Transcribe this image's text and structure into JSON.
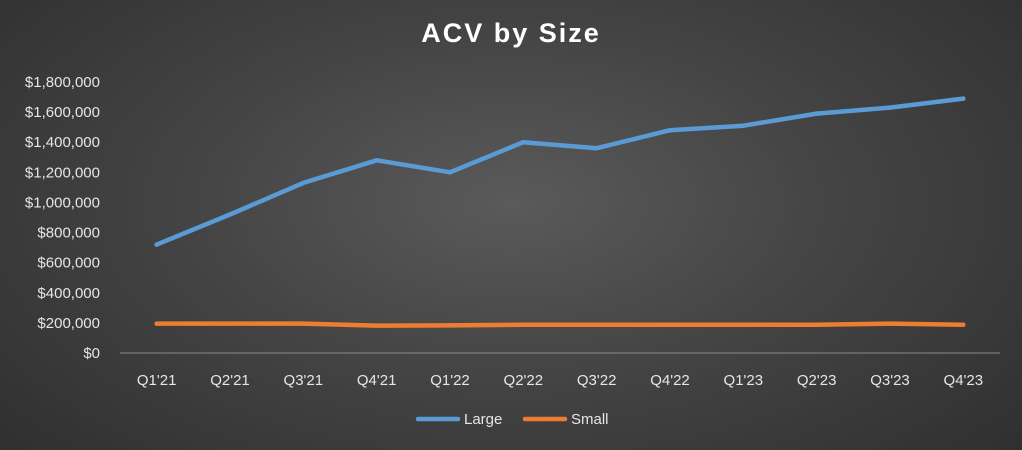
{
  "chart_data": {
    "type": "line",
    "title": "ACV by Size",
    "categories": [
      "Q1'21",
      "Q2'21",
      "Q3'21",
      "Q4'21",
      "Q1'22",
      "Q2'22",
      "Q3'22",
      "Q4'22",
      "Q1'23",
      "Q2'23",
      "Q3'23",
      "Q4'23"
    ],
    "y_tick_labels": [
      "$0",
      "$200,000",
      "$400,000",
      "$600,000",
      "$800,000",
      "$1,000,000",
      "$1,200,000",
      "$1,400,000",
      "$1,600,000",
      "$1,800,000"
    ],
    "ylim": [
      0,
      1800000
    ],
    "y_tick_step": 200000,
    "grid": false,
    "legend_position": "bottom",
    "series": [
      {
        "name": "Large",
        "color": "#5b9bd5",
        "values": [
          720000,
          920000,
          1130000,
          1280000,
          1200000,
          1400000,
          1360000,
          1480000,
          1510000,
          1590000,
          1630000,
          1690000
        ]
      },
      {
        "name": "Small",
        "color": "#ed7d31",
        "values": [
          195000,
          195000,
          195000,
          182000,
          183000,
          188000,
          188000,
          188000,
          188000,
          188000,
          195000,
          188000
        ]
      }
    ]
  }
}
